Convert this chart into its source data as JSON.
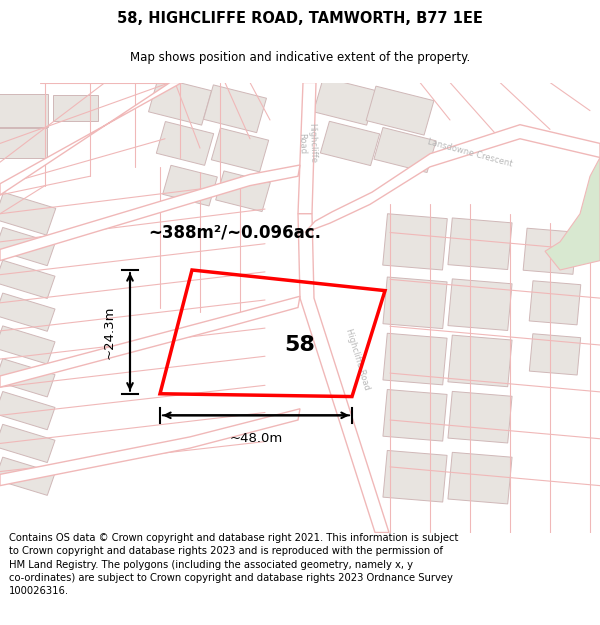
{
  "title": "58, HIGHCLIFFE ROAD, TAMWORTH, B77 1EE",
  "subtitle": "Map shows position and indicative extent of the property.",
  "footnote_line1": "Contains OS data © Crown copyright and database right 2021. This information is subject",
  "footnote_line2": "to Crown copyright and database rights 2023 and is reproduced with the permission of",
  "footnote_line3": "HM Land Registry. The polygons (including the associated geometry, namely x, y",
  "footnote_line4": "co-ordinates) are subject to Crown copyright and database rights 2023 Ordnance Survey",
  "footnote_line5": "100026316.",
  "area_label": "~388m²/~0.096ac.",
  "width_label": "~48.0m",
  "height_label": "~24.3m",
  "plot_number": "58",
  "map_bg": "#f8f6f4",
  "plot_color": "#ff0000",
  "road_color": "#f0b8b8",
  "road_fill": "#ffffff",
  "block_color": "#e8e4e0",
  "block_border": "#d0b8b8",
  "green_color": "#d8e8d0",
  "title_fontsize": 10.5,
  "subtitle_fontsize": 8.5,
  "footnote_fontsize": 7.2,
  "label_color": "#b8b8b8"
}
